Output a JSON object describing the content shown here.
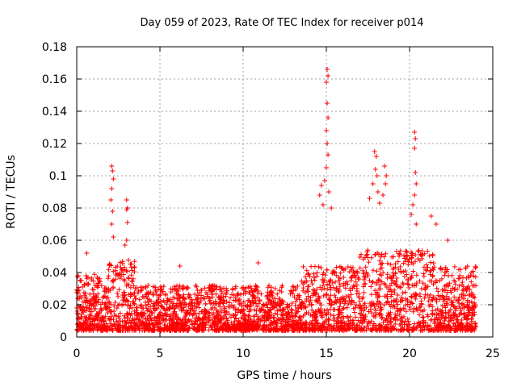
{
  "chart_data": {
    "type": "scatter",
    "title": "Day 059 of 2023, Rate Of TEC Index for receiver p014",
    "xlabel": "GPS time / hours",
    "ylabel": "ROTI / TECUs",
    "xlim": [
      0,
      25
    ],
    "ylim": [
      0,
      0.18
    ],
    "x_ticks": [
      0,
      5,
      10,
      15,
      20,
      25
    ],
    "x_tick_labels": [
      "0",
      "5",
      "10",
      "15",
      "20",
      "25"
    ],
    "y_ticks": [
      0,
      0.02,
      0.04,
      0.06,
      0.08,
      0.1,
      0.12,
      0.14,
      0.16,
      0.18
    ],
    "y_tick_labels": [
      "0",
      "0.02",
      "0.04",
      "0.06",
      "0.08",
      "0.1",
      "0.12",
      "0.14",
      "0.16",
      "0.18"
    ],
    "grid": true,
    "marker": "+",
    "color": "#ff0000",
    "data_range_hours": [
      0,
      24
    ],
    "peaks": [
      {
        "x": 2.1,
        "y": 0.106
      },
      {
        "x": 2.15,
        "y": 0.103
      },
      {
        "x": 2.2,
        "y": 0.098
      },
      {
        "x": 2.1,
        "y": 0.092
      },
      {
        "x": 2.05,
        "y": 0.085
      },
      {
        "x": 2.15,
        "y": 0.078
      },
      {
        "x": 2.1,
        "y": 0.07
      },
      {
        "x": 2.2,
        "y": 0.062
      },
      {
        "x": 3.0,
        "y": 0.085
      },
      {
        "x": 3.05,
        "y": 0.08
      },
      {
        "x": 3.0,
        "y": 0.079
      },
      {
        "x": 3.05,
        "y": 0.071
      },
      {
        "x": 3.0,
        "y": 0.06
      },
      {
        "x": 2.9,
        "y": 0.057
      },
      {
        "x": 15.05,
        "y": 0.166
      },
      {
        "x": 15.1,
        "y": 0.162
      },
      {
        "x": 15.0,
        "y": 0.158
      },
      {
        "x": 15.05,
        "y": 0.145
      },
      {
        "x": 15.1,
        "y": 0.136
      },
      {
        "x": 15.0,
        "y": 0.128
      },
      {
        "x": 15.05,
        "y": 0.12
      },
      {
        "x": 15.1,
        "y": 0.113
      },
      {
        "x": 15.0,
        "y": 0.105
      },
      {
        "x": 14.9,
        "y": 0.097
      },
      {
        "x": 15.15,
        "y": 0.09
      },
      {
        "x": 14.7,
        "y": 0.094
      },
      {
        "x": 14.6,
        "y": 0.088
      },
      {
        "x": 14.8,
        "y": 0.082
      },
      {
        "x": 15.3,
        "y": 0.08
      },
      {
        "x": 17.9,
        "y": 0.115
      },
      {
        "x": 18.0,
        "y": 0.112
      },
      {
        "x": 17.95,
        "y": 0.104
      },
      {
        "x": 18.05,
        "y": 0.1
      },
      {
        "x": 17.8,
        "y": 0.095
      },
      {
        "x": 18.1,
        "y": 0.09
      },
      {
        "x": 17.6,
        "y": 0.086
      },
      {
        "x": 18.2,
        "y": 0.083
      },
      {
        "x": 18.5,
        "y": 0.106
      },
      {
        "x": 18.6,
        "y": 0.1
      },
      {
        "x": 18.55,
        "y": 0.095
      },
      {
        "x": 18.4,
        "y": 0.088
      },
      {
        "x": 20.3,
        "y": 0.127
      },
      {
        "x": 20.35,
        "y": 0.123
      },
      {
        "x": 20.3,
        "y": 0.117
      },
      {
        "x": 20.35,
        "y": 0.102
      },
      {
        "x": 20.4,
        "y": 0.095
      },
      {
        "x": 20.3,
        "y": 0.088
      },
      {
        "x": 20.2,
        "y": 0.082
      },
      {
        "x": 20.1,
        "y": 0.076
      },
      {
        "x": 20.4,
        "y": 0.07
      },
      {
        "x": 21.3,
        "y": 0.075
      },
      {
        "x": 21.6,
        "y": 0.07
      },
      {
        "x": 22.3,
        "y": 0.06
      },
      {
        "x": 10.9,
        "y": 0.046
      },
      {
        "x": 0.6,
        "y": 0.052
      },
      {
        "x": 6.2,
        "y": 0.044
      }
    ],
    "note": "Several thousand additional ROTI samples between 0 and ~0.05 TECU/min spanning 0–24 h; dense band mostly 0.005–0.035 with elevated activity after ~13.5 h."
  }
}
